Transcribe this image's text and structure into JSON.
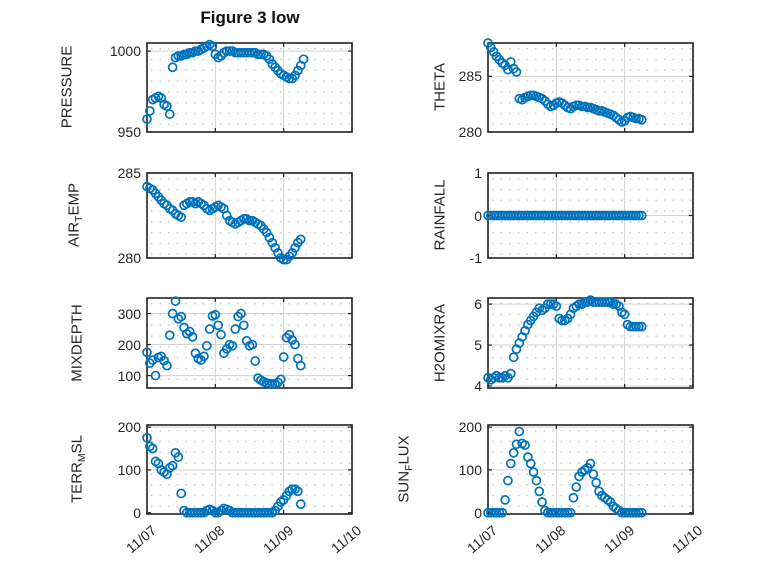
{
  "title": "Figure 3 low",
  "colors": {
    "marker": "#0072BD",
    "axis": "#222222",
    "major_grid": "#d2d2d2",
    "minor_grid": "#c2c2c2",
    "text": "#262626",
    "background": "#ffffff"
  },
  "x_axis": {
    "xlim": [
      0,
      3
    ],
    "xticks": [
      0,
      1,
      2,
      3
    ],
    "tick_labels": [
      "11/07",
      "11/08",
      "11/09",
      "11/10"
    ],
    "sampling": "hourly points starting 11/07 00:00"
  },
  "chart_data": [
    {
      "id": "pressure",
      "type": "scatter",
      "label_parts": {
        "prefix": "PRESSURE",
        "sub": "",
        "suffix": ""
      },
      "ylim": [
        950,
        1005
      ],
      "yticks": [
        950,
        1000
      ],
      "color": "#0072BD",
      "x0": 0,
      "dx": 0.0416667,
      "values": [
        958,
        963,
        970,
        971,
        972,
        971,
        967,
        966,
        961,
        990,
        996,
        997,
        997,
        998,
        998,
        999,
        999,
        1000,
        1000,
        1001,
        1002,
        1003,
        1004,
        1003,
        998,
        996,
        997,
        999,
        1000,
        1000,
        1000,
        999,
        999,
        999,
        999,
        999,
        999,
        999,
        999,
        998,
        998,
        998,
        997,
        995,
        992,
        990,
        988,
        986,
        985,
        984,
        983,
        983,
        985,
        988,
        991,
        995
      ]
    },
    {
      "id": "theta",
      "type": "scatter",
      "label_parts": {
        "prefix": "THETA",
        "sub": "",
        "suffix": ""
      },
      "ylim": [
        280,
        288
      ],
      "yticks": [
        280,
        285
      ],
      "color": "#0072BD",
      "x0": 0,
      "dx": 0.0416667,
      "values": [
        288,
        287.6,
        287.2,
        286.8,
        286.5,
        286.2,
        286.0,
        285.6,
        286.3,
        285.7,
        285.4,
        283.0,
        282.9,
        283.1,
        283.2,
        283.3,
        283.3,
        283.2,
        283.1,
        283.0,
        282.8,
        282.5,
        282.3,
        282.4,
        282.6,
        282.7,
        282.6,
        282.4,
        282.2,
        282.1,
        282.3,
        282.4,
        282.4,
        282.3,
        282.3,
        282.2,
        282.2,
        282.1,
        282.0,
        281.9,
        281.9,
        281.8,
        281.7,
        281.6,
        281.5,
        281.3,
        281.1,
        280.9,
        281.0,
        281.3,
        281.4,
        281.3,
        281.2,
        281.2,
        281.1
      ]
    },
    {
      "id": "air-temp",
      "type": "scatter",
      "label_parts": {
        "prefix": "AIR",
        "sub": "T",
        "suffix": "EMP"
      },
      "ylim": [
        280,
        285
      ],
      "yticks": [
        280,
        285
      ],
      "color": "#0072BD",
      "x0": 0,
      "dx": 0.0416667,
      "values": [
        284.2,
        284.1,
        284.0,
        283.8,
        283.6,
        283.4,
        283.2,
        283.1,
        282.9,
        282.8,
        282.6,
        282.5,
        282.4,
        283.1,
        283.2,
        283.3,
        283.3,
        283.2,
        283.3,
        283.2,
        283.1,
        282.9,
        282.8,
        282.9,
        283.0,
        283.1,
        283.0,
        282.9,
        282.5,
        282.2,
        282.1,
        282.0,
        282.1,
        282.2,
        282.3,
        282.3,
        282.2,
        282.2,
        282.1,
        282.0,
        281.9,
        281.7,
        281.5,
        281.2,
        280.9,
        280.6,
        280.3,
        280.0,
        279.9,
        279.9,
        280.1,
        280.3,
        280.6,
        280.9,
        281.1
      ]
    },
    {
      "id": "rainfall",
      "type": "scatter",
      "label_parts": {
        "prefix": "RAINFALL",
        "sub": "",
        "suffix": ""
      },
      "ylim": [
        -1,
        1
      ],
      "yticks": [
        -1,
        0,
        1
      ],
      "color": "#0072BD",
      "x0": 0,
      "dx": 0.0416667,
      "values": [
        0,
        0,
        0,
        0,
        0,
        0,
        0,
        0,
        0,
        0,
        0,
        0,
        0,
        0,
        0,
        0,
        0,
        0,
        0,
        0,
        0,
        0,
        0,
        0,
        0,
        0,
        0,
        0,
        0,
        0,
        0,
        0,
        0,
        0,
        0,
        0,
        0,
        0,
        0,
        0,
        0,
        0,
        0,
        0,
        0,
        0,
        0,
        0,
        0,
        0,
        0,
        0,
        0,
        0,
        0
      ]
    },
    {
      "id": "mixdepth",
      "type": "scatter",
      "label_parts": {
        "prefix": "MIXDEPTH",
        "sub": "",
        "suffix": ""
      },
      "ylim": [
        60,
        350
      ],
      "yticks": [
        100,
        200,
        300
      ],
      "color": "#0072BD",
      "x0": 0,
      "dx": 0.0416667,
      "values": [
        175,
        140,
        150,
        100,
        158,
        162,
        148,
        132,
        230,
        300,
        340,
        283,
        290,
        255,
        235,
        242,
        225,
        172,
        155,
        150,
        162,
        196,
        250,
        292,
        296,
        262,
        232,
        172,
        186,
        200,
        196,
        250,
        290,
        300,
        262,
        212,
        196,
        200,
        147,
        92,
        85,
        80,
        76,
        74,
        73,
        74,
        78,
        88,
        160,
        222,
        232,
        215,
        200,
        155,
        132
      ]
    },
    {
      "id": "h2omixra",
      "type": "scatter",
      "label_parts": {
        "prefix": "H2OMIXRA",
        "sub": "",
        "suffix": ""
      },
      "ylim": [
        3.95,
        6.15
      ],
      "yticks": [
        4,
        5,
        6
      ],
      "color": "#0072BD",
      "x0": 0,
      "dx": 0.0416667,
      "values": [
        4.2,
        4.15,
        4.2,
        4.25,
        4.2,
        4.2,
        4.25,
        4.2,
        4.3,
        4.7,
        4.9,
        5.05,
        5.2,
        5.35,
        5.5,
        5.6,
        5.7,
        5.8,
        5.9,
        5.85,
        5.9,
        6.0,
        6.0,
        6.0,
        5.95,
        5.65,
        5.6,
        5.6,
        5.65,
        5.75,
        5.9,
        5.95,
        6.0,
        6.0,
        6.05,
        6.05,
        6.1,
        6.05,
        6.05,
        6.05,
        6.05,
        6.05,
        6.05,
        6.05,
        6.0,
        6.0,
        5.95,
        5.8,
        5.75,
        5.5,
        5.45,
        5.45,
        5.45,
        5.45,
        5.45
      ]
    },
    {
      "id": "terr-msl",
      "type": "scatter",
      "label_parts": {
        "prefix": "TERR",
        "sub": "M",
        "suffix": "SL"
      },
      "ylim": [
        -3,
        205
      ],
      "yticks": [
        0,
        100,
        200
      ],
      "color": "#0072BD",
      "x0": 0,
      "dx": 0.0416667,
      "values": [
        175,
        155,
        150,
        120,
        115,
        100,
        95,
        90,
        105,
        110,
        140,
        130,
        45,
        5,
        0,
        0,
        0,
        0,
        0,
        0,
        0,
        5,
        8,
        5,
        0,
        0,
        5,
        10,
        8,
        5,
        0,
        0,
        0,
        0,
        0,
        0,
        0,
        0,
        0,
        0,
        0,
        0,
        0,
        0,
        0,
        5,
        15,
        25,
        30,
        40,
        50,
        55,
        55,
        50,
        20
      ]
    },
    {
      "id": "sun-flux",
      "type": "scatter",
      "label_parts": {
        "prefix": "SUN",
        "sub": "F",
        "suffix": "LUX"
      },
      "ylim": [
        -3,
        205
      ],
      "yticks": [
        0,
        100,
        200
      ],
      "color": "#0072BD",
      "x0": 0,
      "dx": 0.0416667,
      "values": [
        0,
        0,
        0,
        0,
        0,
        0,
        30,
        75,
        115,
        140,
        160,
        190,
        162,
        158,
        130,
        115,
        95,
        75,
        50,
        25,
        5,
        0,
        0,
        0,
        0,
        0,
        0,
        0,
        0,
        0,
        35,
        60,
        85,
        95,
        100,
        105,
        115,
        90,
        70,
        50,
        40,
        35,
        30,
        25,
        15,
        10,
        5,
        0,
        0,
        0,
        0,
        0,
        0,
        0,
        0
      ]
    }
  ]
}
